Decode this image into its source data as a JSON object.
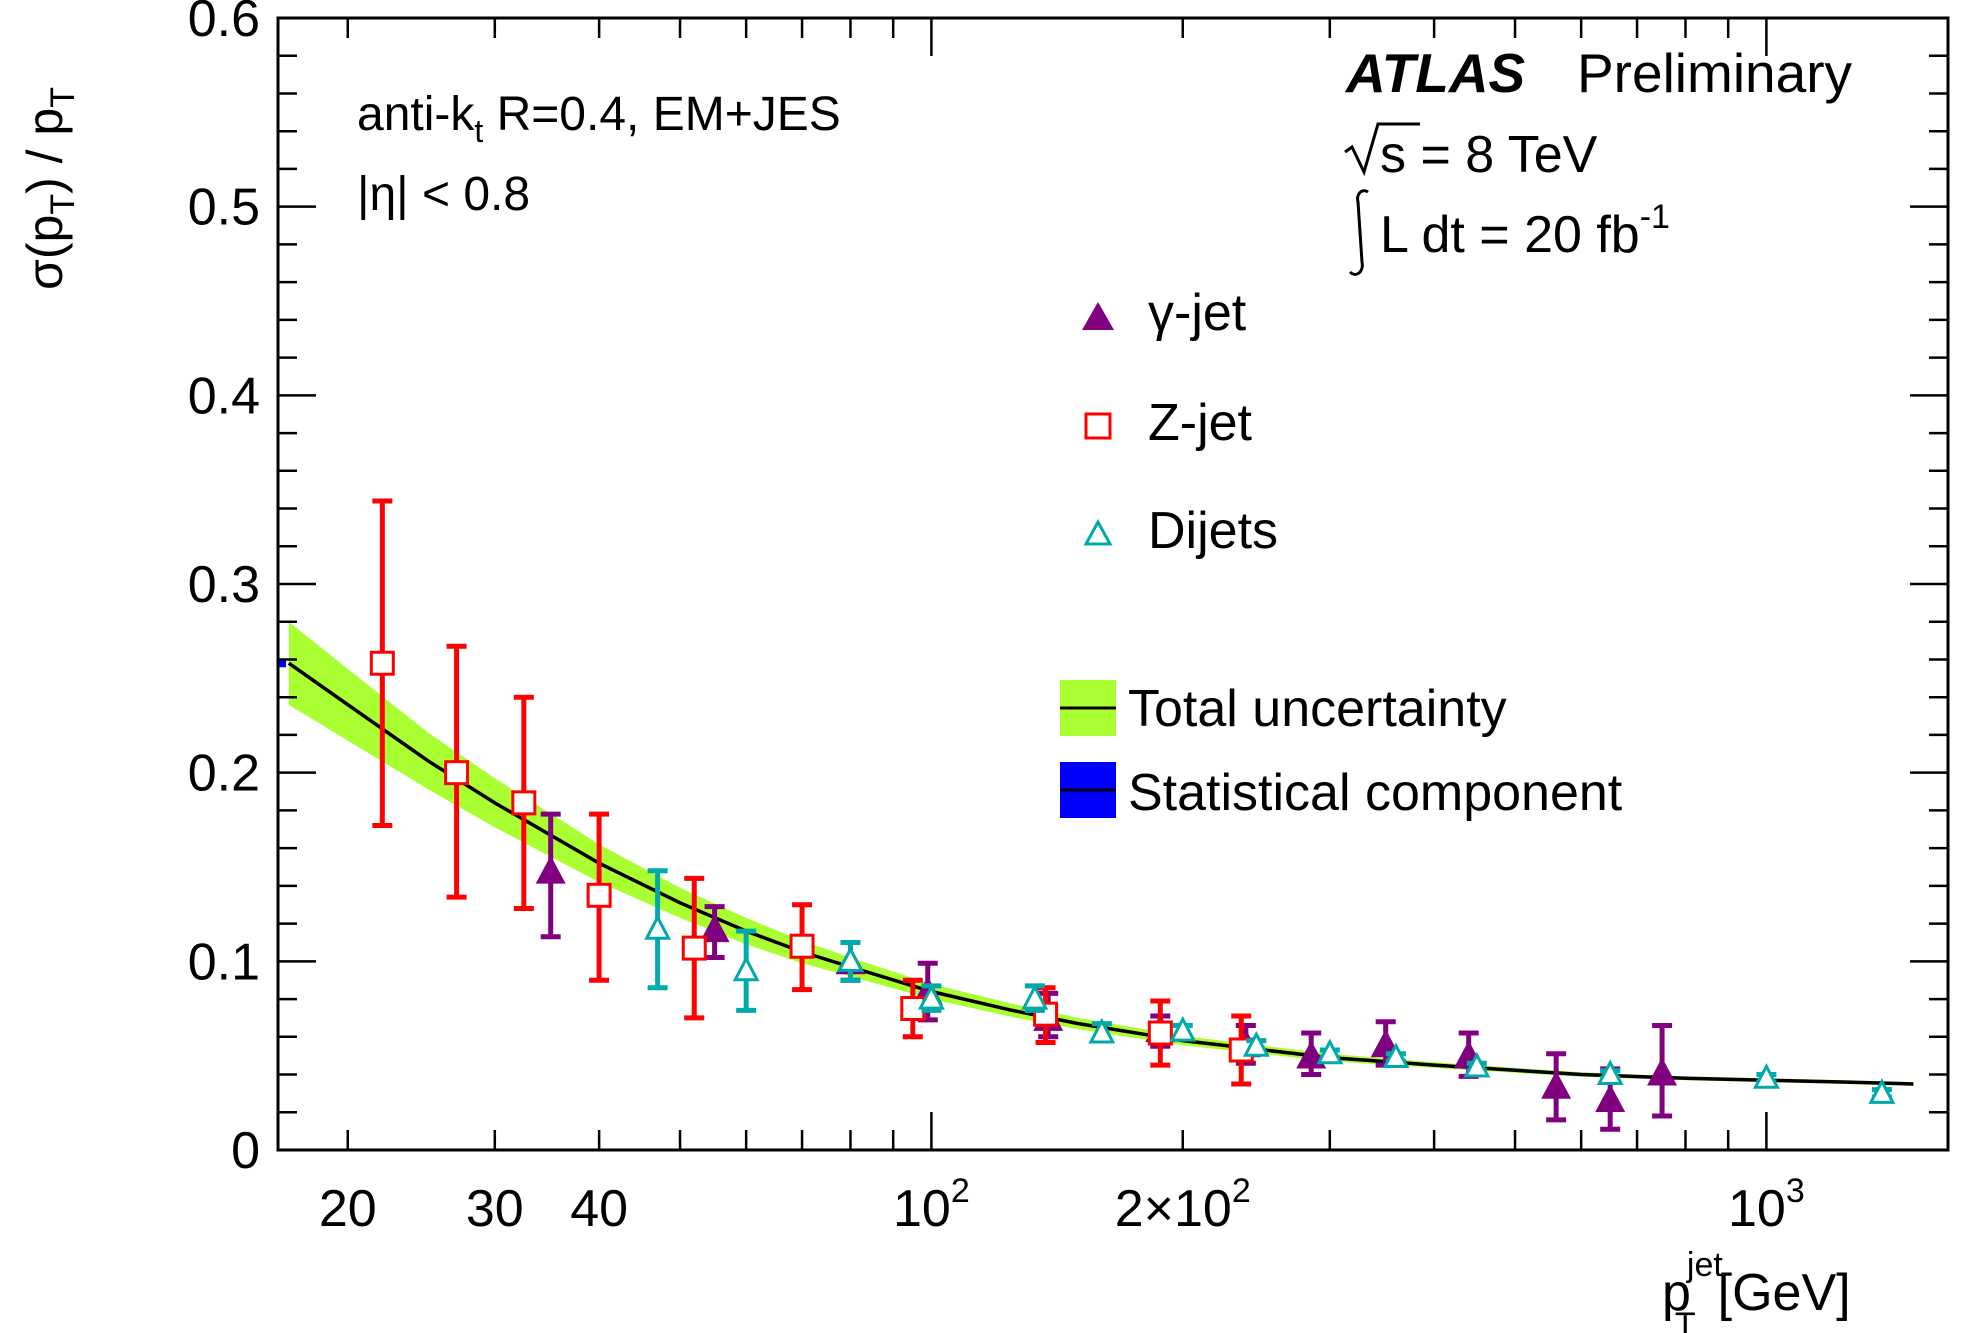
{
  "chart_data": {
    "type": "scatter",
    "xscale": "log",
    "xlim": [
      16.5,
      1650
    ],
    "ylim": [
      0,
      0.6
    ],
    "xticklabels": [
      "20",
      "30",
      "40"
    ],
    "xtick_pow_labels": [
      {
        "base": "10",
        "exp": "2",
        "coef": ""
      },
      {
        "base": "10",
        "exp": "2",
        "coef": "2×"
      },
      {
        "base": "10",
        "exp": "3",
        "coef": ""
      }
    ],
    "yticklabels": [
      "0",
      "0.1",
      "0.2",
      "0.3",
      "0.4",
      "0.5",
      "0.6"
    ],
    "xlabel": {
      "main": "p",
      "sup": "jet",
      "sub": "T",
      "unit": "[GeV]"
    },
    "ylabel": {
      "a": "σ(p",
      "sub": "T",
      "b": ") / p",
      "sub2": "T"
    },
    "annotations": {
      "atlas": "ATLAS",
      "preliminary": "Preliminary",
      "sqrt_s": "s = 8 TeV",
      "lumi": "L dt = 20 fb",
      "lumi_exp": "-1",
      "algo_a": "anti-k",
      "algo_sub": "t",
      "algo_b": " R=0.4, EM+JES",
      "eta": "|η| < 0.8"
    },
    "legend_placement": "right",
    "colors": {
      "gamma": "#800080",
      "zjet": "#ff0000",
      "dijet": "#00aaaa",
      "band": "#aaff33",
      "stat": "#0000ff",
      "fit": "#000000"
    },
    "fit": {
      "name": "Total uncertainty",
      "x": [
        17,
        20,
        25,
        30,
        40,
        50,
        60,
        70,
        80,
        100,
        125,
        150,
        200,
        300,
        400,
        600,
        800,
        1000,
        1250,
        1500
      ],
      "y": [
        0.258,
        0.236,
        0.206,
        0.184,
        0.152,
        0.131,
        0.116,
        0.105,
        0.097,
        0.084,
        0.074,
        0.067,
        0.058,
        0.049,
        0.045,
        0.04,
        0.038,
        0.037,
        0.036,
        0.035
      ],
      "band_halfwidth": [
        0.022,
        0.019,
        0.015,
        0.013,
        0.01,
        0.008,
        0.007,
        0.006,
        0.005,
        0.004,
        0.0035,
        0.003,
        0.0025,
        0.002,
        0.0015,
        0.0012,
        0.001,
        0.001,
        0.001,
        0.001
      ]
    },
    "stat_component": {
      "name": "Statistical component",
      "x": 17,
      "y": 0.258
    },
    "series": [
      {
        "name": "γ-jet",
        "marker": "filled-triangle",
        "points": [
          {
            "x": 35,
            "y": 0.147,
            "lo": 0.113,
            "hi": 0.178
          },
          {
            "x": 55,
            "y": 0.116,
            "lo": 0.102,
            "hi": 0.129
          },
          {
            "x": 80,
            "y": 0.099,
            "lo": 0.09,
            "hi": 0.11
          },
          {
            "x": 99,
            "y": 0.083,
            "lo": 0.069,
            "hi": 0.099
          },
          {
            "x": 138,
            "y": 0.069,
            "lo": 0.06,
            "hi": 0.083
          },
          {
            "x": 188,
            "y": 0.063,
            "lo": 0.055,
            "hi": 0.071
          },
          {
            "x": 238,
            "y": 0.055,
            "lo": 0.046,
            "hi": 0.066
          },
          {
            "x": 285,
            "y": 0.049,
            "lo": 0.04,
            "hi": 0.062
          },
          {
            "x": 350,
            "y": 0.055,
            "lo": 0.045,
            "hi": 0.068
          },
          {
            "x": 440,
            "y": 0.049,
            "lo": 0.039,
            "hi": 0.062
          },
          {
            "x": 560,
            "y": 0.033,
            "lo": 0.016,
            "hi": 0.051
          },
          {
            "x": 650,
            "y": 0.026,
            "lo": 0.011,
            "hi": 0.043
          },
          {
            "x": 750,
            "y": 0.04,
            "lo": 0.018,
            "hi": 0.066
          }
        ]
      },
      {
        "name": "Z-jet",
        "marker": "open-square",
        "points": [
          {
            "x": 22,
            "y": 0.258,
            "lo": 0.172,
            "hi": 0.344
          },
          {
            "x": 27,
            "y": 0.2,
            "lo": 0.134,
            "hi": 0.267
          },
          {
            "x": 32.5,
            "y": 0.184,
            "lo": 0.128,
            "hi": 0.24
          },
          {
            "x": 40,
            "y": 0.135,
            "lo": 0.09,
            "hi": 0.178
          },
          {
            "x": 52,
            "y": 0.107,
            "lo": 0.07,
            "hi": 0.144
          },
          {
            "x": 70,
            "y": 0.108,
            "lo": 0.085,
            "hi": 0.13
          },
          {
            "x": 95,
            "y": 0.075,
            "lo": 0.06,
            "hi": 0.09
          },
          {
            "x": 137,
            "y": 0.072,
            "lo": 0.057,
            "hi": 0.086
          },
          {
            "x": 188,
            "y": 0.062,
            "lo": 0.045,
            "hi": 0.079
          },
          {
            "x": 235,
            "y": 0.053,
            "lo": 0.035,
            "hi": 0.071
          }
        ]
      },
      {
        "name": "Dijets",
        "marker": "open-triangle",
        "points": [
          {
            "x": 47,
            "y": 0.117,
            "lo": 0.086,
            "hi": 0.148
          },
          {
            "x": 60,
            "y": 0.095,
            "lo": 0.074,
            "hi": 0.116
          },
          {
            "x": 80,
            "y": 0.1,
            "lo": 0.09,
            "hi": 0.11
          },
          {
            "x": 100,
            "y": 0.08,
            "lo": 0.074,
            "hi": 0.087
          },
          {
            "x": 133,
            "y": 0.08,
            "lo": 0.074,
            "hi": 0.087
          },
          {
            "x": 160,
            "y": 0.062,
            "lo": 0.058,
            "hi": 0.067
          },
          {
            "x": 200,
            "y": 0.063,
            "lo": 0.06,
            "hi": 0.066
          },
          {
            "x": 245,
            "y": 0.055,
            "lo": 0.052,
            "hi": 0.058
          },
          {
            "x": 300,
            "y": 0.051,
            "lo": 0.049,
            "hi": 0.053
          },
          {
            "x": 360,
            "y": 0.049,
            "lo": 0.047,
            "hi": 0.051
          },
          {
            "x": 450,
            "y": 0.044,
            "lo": 0.042,
            "hi": 0.046
          },
          {
            "x": 650,
            "y": 0.04,
            "lo": 0.038,
            "hi": 0.042
          },
          {
            "x": 1000,
            "y": 0.038,
            "lo": 0.036,
            "hi": 0.04
          },
          {
            "x": 1375,
            "y": 0.03,
            "lo": 0.028,
            "hi": 0.032
          }
        ]
      }
    ]
  }
}
